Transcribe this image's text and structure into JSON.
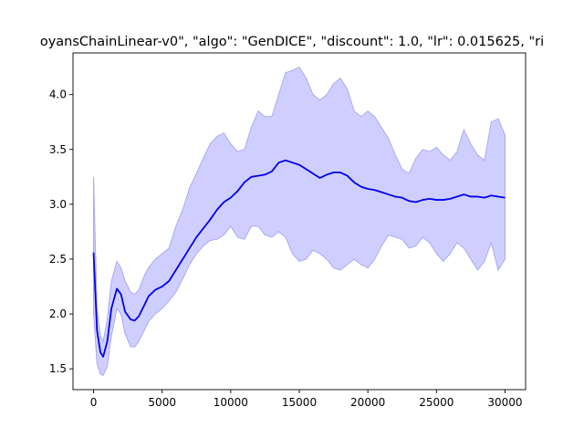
{
  "chart_data": {
    "type": "line",
    "title": "oyansChainLinear-v0\", \"algo\": \"GenDICE\", \"discount\": 1.0, \"lr\": 0.015625, \"ri",
    "xlabel": "",
    "ylabel": "",
    "xlim": [
      -1500,
      31500
    ],
    "ylim": [
      1.31,
      4.38
    ],
    "x_ticks": [
      0,
      5000,
      10000,
      15000,
      20000,
      25000,
      30000
    ],
    "x_tick_labels": [
      "0",
      "5000",
      "10000",
      "15000",
      "20000",
      "25000",
      "30000"
    ],
    "y_ticks": [
      1.5,
      2.0,
      2.5,
      3.0,
      3.5,
      4.0
    ],
    "y_tick_labels": [
      "1.5",
      "2.0",
      "2.5",
      "3.0",
      "3.5",
      "4.0"
    ],
    "grid": false,
    "colors": {
      "line": "#0000ee",
      "band_fill": "#cfcfff",
      "band_edge": "#a9a9f5",
      "axes": "#000000"
    },
    "series": [
      {
        "kind": "mean",
        "x": [
          0,
          250,
          500,
          700,
          1000,
          1300,
          1700,
          2000,
          2300,
          2700,
          3000,
          3300,
          3700,
          4000,
          4500,
          5000,
          5500,
          6000,
          6500,
          7000,
          7500,
          8000,
          8500,
          9000,
          9500,
          10000,
          10500,
          11000,
          11500,
          12000,
          12500,
          13000,
          13500,
          14000,
          14500,
          15000,
          15500,
          16000,
          16500,
          17000,
          17500,
          18000,
          18500,
          19000,
          19500,
          20000,
          20500,
          21000,
          21500,
          22000,
          22500,
          23000,
          23500,
          24000,
          24500,
          25000,
          25500,
          26000,
          26500,
          27000,
          27500,
          28000,
          28500,
          29000,
          29500,
          30000
        ],
        "y": [
          2.56,
          1.85,
          1.65,
          1.61,
          1.75,
          2.05,
          2.23,
          2.18,
          2.02,
          1.95,
          1.94,
          1.98,
          2.08,
          2.16,
          2.22,
          2.25,
          2.3,
          2.4,
          2.5,
          2.6,
          2.7,
          2.78,
          2.86,
          2.95,
          3.02,
          3.06,
          3.12,
          3.2,
          3.25,
          3.26,
          3.27,
          3.3,
          3.38,
          3.4,
          3.38,
          3.36,
          3.32,
          3.28,
          3.24,
          3.27,
          3.29,
          3.29,
          3.26,
          3.2,
          3.16,
          3.14,
          3.13,
          3.11,
          3.09,
          3.07,
          3.06,
          3.03,
          3.02,
          3.04,
          3.05,
          3.04,
          3.04,
          3.05,
          3.07,
          3.09,
          3.07,
          3.07,
          3.06,
          3.08,
          3.07,
          3.06
        ]
      },
      {
        "kind": "upper",
        "x": [
          0,
          250,
          500,
          700,
          1000,
          1300,
          1700,
          2000,
          2300,
          2700,
          3000,
          3300,
          3700,
          4000,
          4500,
          5000,
          5500,
          6000,
          6500,
          7000,
          7500,
          8000,
          8500,
          9000,
          9500,
          10000,
          10500,
          11000,
          11500,
          12000,
          12500,
          13000,
          13500,
          14000,
          14500,
          15000,
          15500,
          16000,
          16500,
          17000,
          17500,
          18000,
          18500,
          19000,
          19500,
          20000,
          20500,
          21000,
          21500,
          22000,
          22500,
          23000,
          23500,
          24000,
          24500,
          25000,
          25500,
          26000,
          26500,
          27000,
          27500,
          28000,
          28500,
          29000,
          29500,
          30000
        ],
        "y": [
          3.25,
          2.05,
          1.8,
          1.75,
          1.95,
          2.3,
          2.48,
          2.42,
          2.3,
          2.2,
          2.18,
          2.22,
          2.35,
          2.42,
          2.5,
          2.55,
          2.6,
          2.8,
          2.95,
          3.15,
          3.28,
          3.42,
          3.55,
          3.62,
          3.65,
          3.55,
          3.48,
          3.5,
          3.7,
          3.85,
          3.8,
          3.8,
          4.0,
          4.2,
          4.22,
          4.25,
          4.15,
          4.0,
          3.95,
          4.0,
          4.1,
          4.15,
          4.05,
          3.85,
          3.8,
          3.85,
          3.8,
          3.7,
          3.6,
          3.45,
          3.32,
          3.28,
          3.42,
          3.5,
          3.48,
          3.52,
          3.45,
          3.4,
          3.48,
          3.68,
          3.55,
          3.45,
          3.4,
          3.75,
          3.78,
          3.63
        ]
      },
      {
        "kind": "lower",
        "x": [
          0,
          250,
          500,
          700,
          1000,
          1300,
          1700,
          2000,
          2300,
          2700,
          3000,
          3300,
          3700,
          4000,
          4500,
          5000,
          5500,
          6000,
          6500,
          7000,
          7500,
          8000,
          8500,
          9000,
          9500,
          10000,
          10500,
          11000,
          11500,
          12000,
          12500,
          13000,
          13500,
          14000,
          14500,
          15000,
          15500,
          16000,
          16500,
          17000,
          17500,
          18000,
          18500,
          19000,
          19500,
          20000,
          20500,
          21000,
          21500,
          22000,
          22500,
          23000,
          23500,
          24000,
          24500,
          25000,
          25500,
          26000,
          26500,
          27000,
          27500,
          28000,
          28500,
          29000,
          29500,
          30000
        ],
        "y": [
          2.0,
          1.55,
          1.45,
          1.44,
          1.52,
          1.8,
          2.05,
          2.0,
          1.82,
          1.7,
          1.7,
          1.75,
          1.85,
          1.93,
          2.0,
          2.05,
          2.12,
          2.2,
          2.32,
          2.45,
          2.55,
          2.62,
          2.67,
          2.68,
          2.72,
          2.8,
          2.7,
          2.68,
          2.8,
          2.8,
          2.72,
          2.7,
          2.75,
          2.7,
          2.55,
          2.48,
          2.5,
          2.58,
          2.55,
          2.5,
          2.42,
          2.4,
          2.45,
          2.5,
          2.45,
          2.42,
          2.5,
          2.62,
          2.72,
          2.7,
          2.68,
          2.6,
          2.62,
          2.7,
          2.65,
          2.55,
          2.48,
          2.55,
          2.65,
          2.6,
          2.5,
          2.4,
          2.48,
          2.65,
          2.4,
          2.5
        ]
      }
    ]
  }
}
